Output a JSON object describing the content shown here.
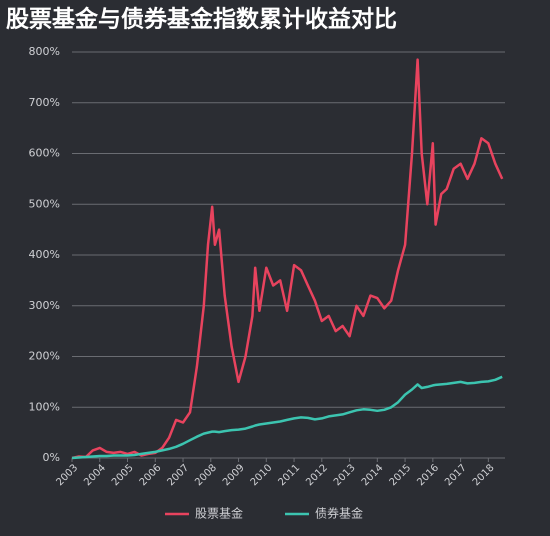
{
  "chart_data": {
    "type": "line",
    "title": "股票基金与债券基金指数累计收益对比",
    "x": [
      2003.0,
      2003.25,
      2003.5,
      2003.75,
      2004.0,
      2004.25,
      2004.5,
      2004.75,
      2005.0,
      2005.25,
      2005.5,
      2005.75,
      2006.0,
      2006.25,
      2006.5,
      2006.75,
      2007.0,
      2007.25,
      2007.5,
      2007.75,
      2007.9,
      2008.05,
      2008.15,
      2008.3,
      2008.5,
      2008.75,
      2009.0,
      2009.25,
      2009.5,
      2009.6,
      2009.75,
      2010.0,
      2010.25,
      2010.5,
      2010.75,
      2011.0,
      2011.25,
      2011.5,
      2011.75,
      2012.0,
      2012.25,
      2012.5,
      2012.75,
      2013.0,
      2013.25,
      2013.5,
      2013.75,
      2014.0,
      2014.25,
      2014.5,
      2014.75,
      2015.0,
      2015.25,
      2015.45,
      2015.6,
      2015.8,
      2016.0,
      2016.1,
      2016.3,
      2016.5,
      2016.75,
      2017.0,
      2017.25,
      2017.5,
      2017.75,
      2018.0,
      2018.25,
      2018.5
    ],
    "series": [
      {
        "name": "股票基金",
        "color": "#e8435e",
        "values": [
          0,
          3,
          2,
          15,
          20,
          12,
          10,
          12,
          8,
          12,
          5,
          8,
          10,
          20,
          40,
          75,
          70,
          90,
          180,
          300,
          420,
          495,
          420,
          450,
          320,
          220,
          150,
          200,
          280,
          375,
          290,
          375,
          340,
          350,
          290,
          380,
          370,
          340,
          310,
          270,
          280,
          250,
          260,
          240,
          300,
          280,
          320,
          315,
          295,
          310,
          370,
          420,
          600,
          785,
          600,
          500,
          620,
          460,
          520,
          530,
          570,
          580,
          550,
          580,
          630,
          620,
          580,
          550
        ]
      },
      {
        "name": "债券基金",
        "color": "#3cc4b0",
        "values": [
          0,
          1,
          2,
          3,
          4,
          4,
          5,
          5,
          5,
          6,
          8,
          10,
          12,
          15,
          18,
          22,
          28,
          35,
          42,
          48,
          50,
          52,
          52,
          51,
          53,
          55,
          56,
          58,
          62,
          64,
          66,
          68,
          70,
          72,
          75,
          78,
          80,
          79,
          76,
          78,
          82,
          84,
          86,
          90,
          94,
          96,
          95,
          93,
          95,
          100,
          110,
          125,
          135,
          145,
          138,
          140,
          143,
          144,
          145,
          146,
          148,
          150,
          147,
          148,
          150,
          151,
          154,
          160
        ]
      }
    ],
    "xlim": [
      2003,
      2018.6
    ],
    "xticks": [
      2003,
      2004,
      2005,
      2006,
      2007,
      2008,
      2009,
      2010,
      2011,
      2012,
      2013,
      2014,
      2015,
      2016,
      2017,
      2018
    ],
    "ylim": [
      0,
      800
    ],
    "yticks": [
      {
        "value": 0,
        "label": "0%"
      },
      {
        "value": 100,
        "label": "100%"
      },
      {
        "value": 200,
        "label": "200%"
      },
      {
        "value": 300,
        "label": "300%"
      },
      {
        "value": 400,
        "label": "400%"
      },
      {
        "value": 500,
        "label": "500%"
      },
      {
        "value": 600,
        "label": "600%"
      },
      {
        "value": 700,
        "label": "700%"
      },
      {
        "value": 800,
        "label": "800%"
      }
    ],
    "grid": true,
    "legend": "bottom"
  }
}
